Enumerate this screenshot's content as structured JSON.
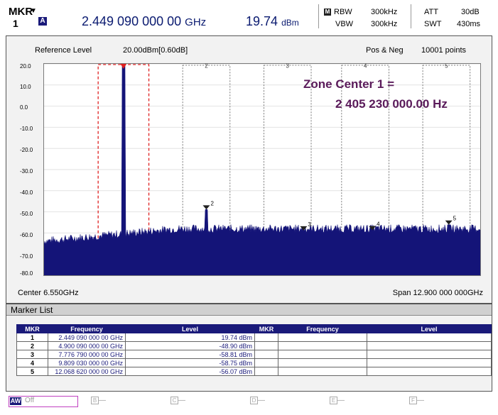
{
  "marker": {
    "label": "MKR",
    "caret": "▼",
    "number": "1",
    "mode_badge": "A",
    "frequency": "2.449 090 000 00",
    "frequency_unit": "GHz",
    "level": "19.74",
    "level_unit": "dBm"
  },
  "settings": {
    "m_badge": "M",
    "rbw_label": "RBW",
    "rbw_value": "300kHz",
    "vbw_label": "VBW",
    "vbw_value": "300kHz",
    "att_label": "ATT",
    "att_value": "30dB",
    "swt_label": "SWT",
    "swt_value": "430ms"
  },
  "plot": {
    "reference_level_label": "Reference Level",
    "reference_level_value": "20.00dBm[0.60dB]",
    "detector": "Pos & Neg",
    "points": "10001 points",
    "center": "Center 6.550GHz",
    "span": "Span 12.900 000 000GHz",
    "annotation_line1": "Zone Center 1 =",
    "annotation_line2": "2 405 230 000.00 Hz",
    "y_ticks": [
      "20.0",
      "10.0",
      "0.0",
      "-10.0",
      "-20.0",
      "-30.0",
      "-40.0",
      "-50.0",
      "-60.0",
      "-70.0",
      "-80.0"
    ],
    "zone_labels": [
      "1",
      "2",
      "3",
      "4",
      "5"
    ],
    "marker_labels": [
      "2",
      "3",
      "4",
      "5"
    ],
    "colors": {
      "trace": "#141478",
      "zone_active": "#e02020",
      "annotation": "#5a1a5a"
    }
  },
  "chart_data": {
    "type": "line",
    "x_unit": "GHz",
    "x_range": [
      0.1,
      13.0
    ],
    "ylim": [
      -80,
      20
    ],
    "y_ticks": [
      20,
      10,
      0,
      -10,
      -20,
      -30,
      -40,
      -50,
      -60,
      -70,
      -80
    ],
    "noise_floor_dbm": -62,
    "peaks": [
      {
        "marker": "1",
        "frequency_ghz": 2.449,
        "level_dbm": 19.74
      },
      {
        "marker": "2",
        "frequency_ghz": 4.9,
        "level_dbm": -48.9
      },
      {
        "marker": "3",
        "frequency_ghz": 7.777,
        "level_dbm": -58.81
      },
      {
        "marker": "4",
        "frequency_ghz": 9.809,
        "level_dbm": -58.75
      },
      {
        "marker": "5",
        "frequency_ghz": 12.069,
        "level_dbm": -56.07
      }
    ],
    "secondary_peak": {
      "frequency_ghz": 2.449,
      "level_dbm": -7
    },
    "zones_ghz": [
      [
        1.7,
        3.2
      ],
      [
        4.2,
        5.6
      ],
      [
        6.6,
        8.0
      ],
      [
        8.9,
        10.3
      ],
      [
        11.3,
        12.7
      ]
    ]
  },
  "marker_list": {
    "title": "Marker List",
    "headers": [
      "MKR",
      "Frequency",
      "Level",
      "MKR",
      "Frequency",
      "Level"
    ],
    "rows": [
      {
        "mkr": "1",
        "freq": "2.449 090 000 00 GHz",
        "level": "19.74 dBm"
      },
      {
        "mkr": "2",
        "freq": "4.900 090 000 00 GHz",
        "level": "-48.90 dBm"
      },
      {
        "mkr": "3",
        "freq": "7.776 790 000 00 GHz",
        "level": "-58.81 dBm"
      },
      {
        "mkr": "4",
        "freq": "9.809 030 000 00 GHz",
        "level": "-58.75 dBm"
      },
      {
        "mkr": "5",
        "freq": "12.068 620 000 00 GHz",
        "level": "-56.07 dBm"
      }
    ]
  },
  "softkeys": {
    "a_tag": "AW",
    "a_value": "Off",
    "b": "B",
    "c": "C",
    "d": "D",
    "e": "E",
    "f": "F",
    "dash": "—"
  }
}
